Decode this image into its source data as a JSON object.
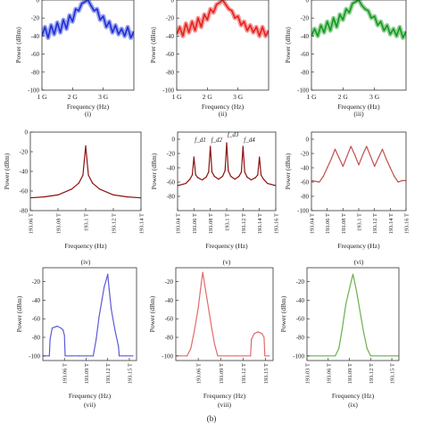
{
  "figure": {
    "caption": "(b)"
  },
  "chart_data": [
    {
      "id": "i",
      "type": "line",
      "sublabel": "(i)",
      "xlabel": "Frequency (Hz)",
      "ylabel": "Power (dBm)",
      "xlim": [
        1,
        4
      ],
      "ylim": [
        -100,
        0
      ],
      "x_ticks": [
        1,
        2,
        3
      ],
      "x_tick_labels": [
        "1 G",
        "2 G",
        "3 G"
      ],
      "y_ticks": [
        -100,
        -80,
        -60,
        -40,
        -20,
        0
      ],
      "y_tick_labels": [
        "-100",
        "-80",
        "-60",
        "-40",
        "-20",
        "0"
      ],
      "color": "#1d2fd8",
      "series": [
        {
          "x": [
            1.0,
            1.1,
            1.2,
            1.3,
            1.4,
            1.5,
            1.6,
            1.7,
            1.8,
            1.9,
            2.0,
            2.1,
            2.2,
            2.3,
            2.4,
            2.5,
            2.6,
            2.7,
            2.8,
            2.9,
            3.0,
            3.1,
            3.2,
            3.3,
            3.4,
            3.5,
            3.6,
            3.7,
            3.8,
            3.9,
            4.0
          ],
          "y": [
            -40,
            -30,
            -42,
            -28,
            -38,
            -25,
            -36,
            -22,
            -32,
            -17,
            -24,
            -10,
            -12,
            -4,
            -2,
            0,
            -6,
            -12,
            -10,
            -22,
            -18,
            -30,
            -24,
            -36,
            -28,
            -38,
            -32,
            -40,
            -30,
            -42,
            -35
          ]
        }
      ]
    },
    {
      "id": "ii",
      "type": "line",
      "sublabel": "(ii)",
      "xlabel": "Frequency (Hz)",
      "ylabel": "Power (dBm)",
      "xlim": [
        1,
        4
      ],
      "ylim": [
        -100,
        0
      ],
      "x_ticks": [
        1,
        2,
        3
      ],
      "x_tick_labels": [
        "1 G",
        "2 G",
        "3 G"
      ],
      "y_ticks": [
        -100,
        -80,
        -60,
        -40,
        -20,
        0
      ],
      "y_tick_labels": [
        "-100",
        "-80",
        "-60",
        "-40",
        "-20",
        "0"
      ],
      "color": "#e8201b",
      "series": [
        {
          "x": [
            1.0,
            1.1,
            1.2,
            1.3,
            1.4,
            1.5,
            1.6,
            1.7,
            1.8,
            1.9,
            2.0,
            2.1,
            2.2,
            2.3,
            2.4,
            2.5,
            2.6,
            2.7,
            2.8,
            2.9,
            3.0,
            3.1,
            3.2,
            3.3,
            3.4,
            3.5,
            3.6,
            3.7,
            3.8,
            3.9,
            4.0
          ],
          "y": [
            -38,
            -30,
            -40,
            -26,
            -36,
            -24,
            -34,
            -20,
            -30,
            -16,
            -22,
            -10,
            -14,
            -5,
            -3,
            0,
            -5,
            -10,
            -12,
            -20,
            -18,
            -28,
            -24,
            -34,
            -28,
            -36,
            -30,
            -40,
            -30,
            -40,
            -34
          ]
        }
      ]
    },
    {
      "id": "iii",
      "type": "line",
      "sublabel": "(iii)",
      "xlabel": "Frequency (Hz)",
      "ylabel": "Power (dBm)",
      "xlim": [
        1,
        4
      ],
      "ylim": [
        -100,
        0
      ],
      "x_ticks": [
        1,
        2,
        3
      ],
      "x_tick_labels": [
        "1 G",
        "2 G",
        "3 G"
      ],
      "y_ticks": [
        -100,
        -80,
        -60,
        -40,
        -20,
        0
      ],
      "y_tick_labels": [
        "-100",
        "-80",
        "-60",
        "-40",
        "-20",
        "0"
      ],
      "color": "#139a1c",
      "series": [
        {
          "x": [
            1.0,
            1.1,
            1.2,
            1.3,
            1.4,
            1.5,
            1.6,
            1.7,
            1.8,
            1.9,
            2.0,
            2.1,
            2.2,
            2.3,
            2.4,
            2.5,
            2.6,
            2.7,
            2.8,
            2.9,
            3.0,
            3.1,
            3.2,
            3.3,
            3.4,
            3.5,
            3.6,
            3.7,
            3.8,
            3.9,
            4.0
          ],
          "y": [
            -40,
            -32,
            -40,
            -28,
            -36,
            -24,
            -34,
            -20,
            -30,
            -16,
            -22,
            -10,
            -14,
            -4,
            -2,
            0,
            -6,
            -10,
            -12,
            -20,
            -18,
            -28,
            -24,
            -34,
            -28,
            -38,
            -32,
            -40,
            -30,
            -42,
            -35
          ]
        }
      ]
    },
    {
      "id": "iv",
      "type": "line",
      "sublabel": "(iv)",
      "xlabel": "Frequency (Hz)",
      "ylabel": "Power (dBm)",
      "xlim": [
        193.06,
        193.14
      ],
      "ylim": [
        -80,
        0
      ],
      "x_ticks": [
        193.06,
        193.08,
        193.1,
        193.12,
        193.14
      ],
      "x_tick_labels": [
        "193.06 T",
        "193.08 T",
        "193.1 T",
        "193.12 T",
        "193.14 T"
      ],
      "y_ticks": [
        -80,
        -60,
        -40,
        -20,
        0
      ],
      "y_tick_labels": [
        "-80",
        "-60",
        "-40",
        "-20",
        "0"
      ],
      "color": "#8b1010",
      "series": [
        {
          "x": [
            193.06,
            193.07,
            193.08,
            193.09,
            193.095,
            193.098,
            193.1,
            193.102,
            193.105,
            193.11,
            193.12,
            193.13,
            193.14
          ],
          "y": [
            -67,
            -66,
            -64,
            -58,
            -52,
            -44,
            -14,
            -44,
            -52,
            -58,
            -64,
            -66,
            -67
          ]
        }
      ]
    },
    {
      "id": "v",
      "type": "line",
      "sublabel": "(v)",
      "xlabel": "Frequency (Hz)",
      "ylabel": "Power (dBm)",
      "xlim": [
        193.04,
        193.16
      ],
      "ylim": [
        -100,
        10
      ],
      "x_ticks": [
        193.04,
        193.06,
        193.08,
        193.1,
        193.12,
        193.14,
        193.16
      ],
      "x_tick_labels": [
        "193.04 T",
        "193.06 T",
        "193.08 T",
        "193.1 T",
        "193.12 T",
        "193.14 T",
        "193.16 T"
      ],
      "y_ticks": [
        -80,
        -60,
        -40,
        -20,
        0
      ],
      "y_tick_labels": [
        "-80",
        "-60",
        "-40",
        "-20",
        "0"
      ],
      "color": "#8b1010",
      "annotations": [
        "f_d1",
        "f_d2",
        "f_d3",
        "f_d4"
      ],
      "series": [
        {
          "x": [
            193.04,
            193.05,
            193.055,
            193.058,
            193.06,
            193.062,
            193.065,
            193.07,
            193.075,
            193.078,
            193.08,
            193.082,
            193.085,
            193.09,
            193.095,
            193.098,
            193.1,
            193.102,
            193.105,
            193.11,
            193.115,
            193.118,
            193.12,
            193.122,
            193.125,
            193.13,
            193.135,
            193.138,
            193.14,
            193.142,
            193.145,
            193.15,
            193.16
          ],
          "y": [
            -65,
            -62,
            -56,
            -50,
            -25,
            -50,
            -54,
            -57,
            -53,
            -46,
            -10,
            -46,
            -52,
            -56,
            -52,
            -44,
            -5,
            -44,
            -52,
            -56,
            -52,
            -46,
            -10,
            -46,
            -53,
            -57,
            -54,
            -50,
            -25,
            -50,
            -56,
            -62,
            -65
          ]
        }
      ]
    },
    {
      "id": "vi",
      "type": "line",
      "sublabel": "(vi)",
      "xlabel": "Frequency (Hz)",
      "ylabel": "Power (dBm)",
      "xlim": [
        193.04,
        193.16
      ],
      "ylim": [
        -100,
        10
      ],
      "x_ticks": [
        193.04,
        193.06,
        193.08,
        193.1,
        193.12,
        193.14,
        193.16
      ],
      "x_tick_labels": [
        "193.04 T",
        "193.06 T",
        "193.08 T",
        "193.1 T",
        "193.12 T",
        "193.14 T",
        "193.16 T"
      ],
      "y_ticks": [
        -100,
        -80,
        -60,
        -40,
        -20,
        0
      ],
      "y_tick_labels": [
        "-100",
        "-80",
        "-60",
        "-40",
        "-20",
        "0"
      ],
      "color": "#c0504d",
      "series": [
        {
          "x": [
            193.04,
            193.05,
            193.055,
            193.06,
            193.065,
            193.07,
            193.075,
            193.08,
            193.085,
            193.09,
            193.095,
            193.1,
            193.105,
            193.11,
            193.115,
            193.12,
            193.125,
            193.13,
            193.135,
            193.14,
            193.145,
            193.15,
            193.155,
            193.16
          ],
          "y": [
            -58,
            -60,
            -52,
            -40,
            -28,
            -14,
            -26,
            -38,
            -24,
            -10,
            -22,
            -36,
            -22,
            -10,
            -24,
            -38,
            -26,
            -14,
            -28,
            -40,
            -52,
            -60,
            -58,
            -58
          ]
        }
      ]
    },
    {
      "id": "vii",
      "type": "line",
      "sublabel": "(vii)",
      "xlabel": "Frequency (Hz)",
      "ylabel": "Power (dBm)",
      "xlim": [
        193.03,
        193.16
      ],
      "ylim": [
        -105,
        -5
      ],
      "x_ticks": [
        193.06,
        193.09,
        193.12,
        193.15
      ],
      "x_tick_labels": [
        "193.06 T",
        "193.09 T",
        "193.12 T",
        "193.15 T"
      ],
      "y_ticks": [
        -100,
        -80,
        -60,
        -40,
        -20
      ],
      "y_tick_labels": [
        "-100",
        "-80",
        "-60",
        "-40",
        "-20"
      ],
      "color": "#5b5bd6",
      "series": [
        {
          "x": [
            193.03,
            193.039,
            193.04,
            193.043,
            193.05,
            193.055,
            193.058,
            193.06,
            193.061,
            193.07,
            193.08,
            193.09,
            193.1,
            193.104,
            193.108,
            193.112,
            193.115,
            193.118,
            193.12,
            193.122,
            193.125,
            193.13,
            193.135,
            193.136,
            193.145,
            193.155
          ],
          "y": [
            -100,
            -100,
            -82,
            -70,
            -68,
            -70,
            -72,
            -78,
            -100,
            -100,
            -100,
            -100,
            -100,
            -82,
            -58,
            -40,
            -26,
            -18,
            -12,
            -28,
            -50,
            -72,
            -90,
            -100,
            -100,
            -100
          ]
        }
      ]
    },
    {
      "id": "viii",
      "type": "line",
      "sublabel": "(viii)",
      "xlabel": "Frequency (Hz)",
      "ylabel": "Power (dBm)",
      "xlim": [
        193.03,
        193.16
      ],
      "ylim": [
        -105,
        -5
      ],
      "x_ticks": [
        193.06,
        193.09,
        193.12,
        193.15
      ],
      "x_tick_labels": [
        "193.06 T",
        "193.09 T",
        "193.12 T",
        "193.15 T"
      ],
      "y_ticks": [
        -100,
        -80,
        -60,
        -40,
        -20
      ],
      "y_tick_labels": [
        "-100",
        "-80",
        "-60",
        "-40",
        "-20"
      ],
      "color": "#e26a6a",
      "series": [
        {
          "x": [
            193.03,
            193.045,
            193.05,
            193.055,
            193.06,
            193.063,
            193.066,
            193.07,
            193.074,
            193.078,
            193.082,
            193.086,
            193.09,
            193.1,
            193.11,
            193.12,
            193.13,
            193.131,
            193.135,
            193.14,
            193.145,
            193.148,
            193.149,
            193.155
          ],
          "y": [
            -100,
            -100,
            -92,
            -72,
            -48,
            -28,
            -10,
            -30,
            -50,
            -70,
            -88,
            -100,
            -100,
            -100,
            -100,
            -100,
            -100,
            -82,
            -76,
            -74,
            -76,
            -80,
            -100,
            -100
          ]
        }
      ]
    },
    {
      "id": "ix",
      "type": "line",
      "sublabel": "(ix)",
      "xlabel": "Frequency (Hz)",
      "ylabel": "Power (dBm)",
      "xlim": [
        193.03,
        193.16
      ],
      "ylim": [
        -105,
        -5
      ],
      "x_ticks": [
        193.03,
        193.06,
        193.09,
        193.12,
        193.15
      ],
      "x_tick_labels": [
        "193.03 T",
        "193.06 T",
        "193.09 T",
        "193.12 T",
        "193.15 T"
      ],
      "y_ticks": [
        -100,
        -80,
        -60,
        -40,
        -20
      ],
      "y_tick_labels": [
        "-100",
        "-80",
        "-60",
        "-40",
        "-20"
      ],
      "color": "#6ab04c",
      "series": [
        {
          "x": [
            193.03,
            193.06,
            193.07,
            193.075,
            193.08,
            193.085,
            193.09,
            193.095,
            193.1,
            193.105,
            193.11,
            193.115,
            193.12,
            193.13,
            193.14,
            193.15,
            193.16
          ],
          "y": [
            -100,
            -100,
            -100,
            -92,
            -70,
            -44,
            -28,
            -12,
            -30,
            -52,
            -74,
            -92,
            -100,
            -100,
            -100,
            -100,
            -100
          ]
        }
      ]
    }
  ]
}
